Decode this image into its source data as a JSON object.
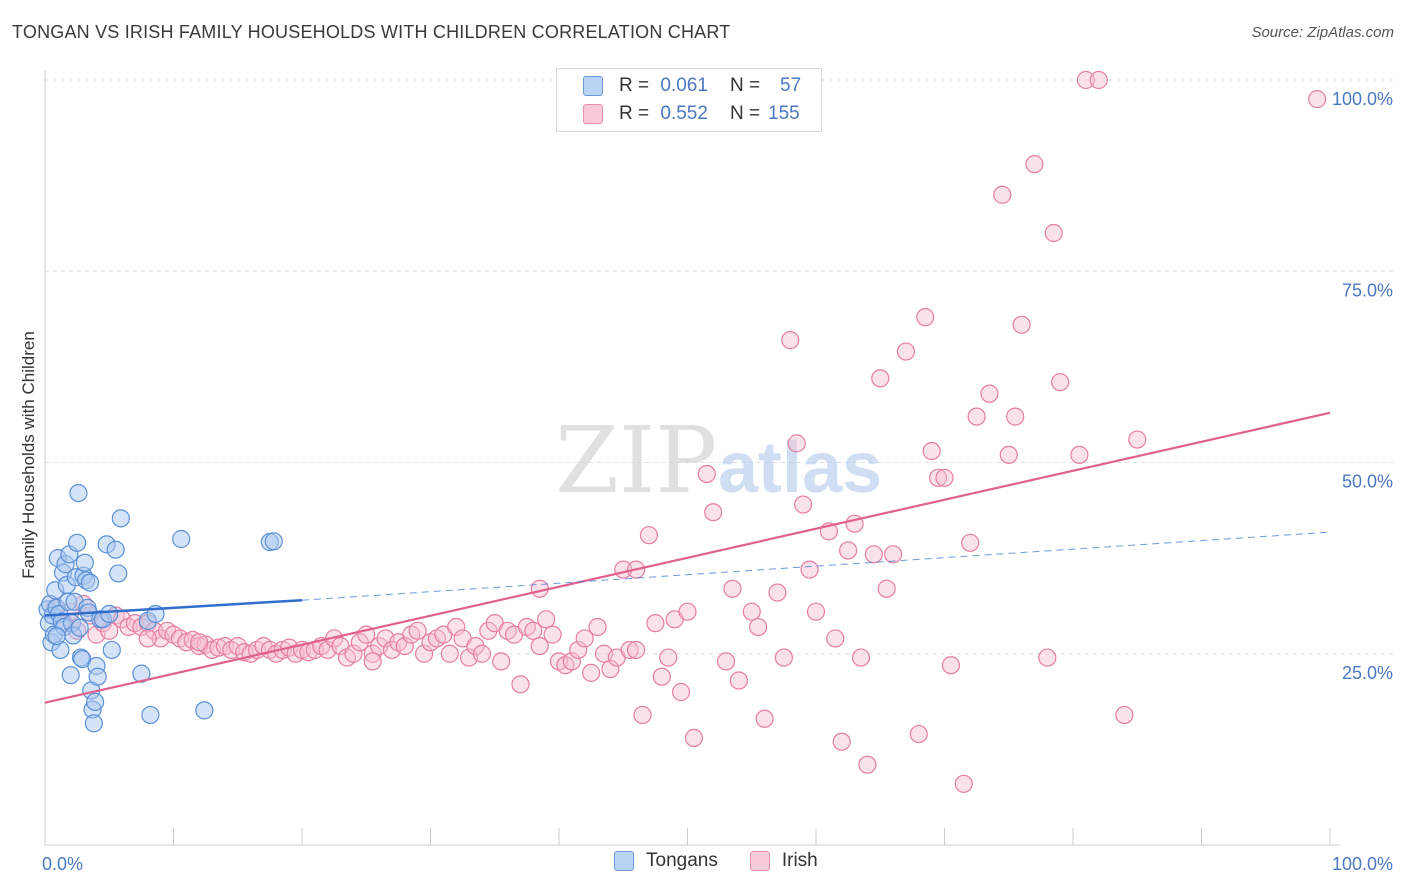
{
  "header": {
    "title": "TONGAN VS IRISH FAMILY HOUSEHOLDS WITH CHILDREN CORRELATION CHART",
    "source": "Source: ZipAtlas.com"
  },
  "legend": {
    "rows": [
      {
        "r_label": "R =",
        "r_value": "0.061",
        "n_label": "N =",
        "n_value": "57"
      },
      {
        "r_label": "R =",
        "r_value": "0.552",
        "n_label": "N =",
        "n_value": "155"
      }
    ],
    "series_names": [
      "Tongans",
      "Irish"
    ]
  },
  "watermark": {
    "zip": "ZIP",
    "atlas": "atlas"
  },
  "colors": {
    "tongans_fill": "#a9c8f0",
    "tongans_stroke": "#5a90d8",
    "tongans_line": "#2f6fcb",
    "irish_fill": "#f6bfd0",
    "irish_stroke": "#e67ea0",
    "irish_line": "#e0608e",
    "tick_color": "#4a78c0"
  },
  "chart_data": {
    "type": "scatter",
    "title": "TONGAN VS IRISH FAMILY HOUSEHOLDS WITH CHILDREN CORRELATION CHART",
    "xlabel": "",
    "ylabel": "Family Households with Children",
    "xlim": [
      0,
      100
    ],
    "ylim": [
      0,
      105
    ],
    "x_tick_labels": [
      "0.0%",
      "100.0%"
    ],
    "y_ticks": [
      25,
      50,
      75,
      100
    ],
    "y_tick_labels": [
      "25.0%",
      "50.0%",
      "75.0%",
      "100.0%"
    ],
    "grid": true,
    "legend_position": "top-center",
    "series": [
      {
        "name": "Tongans",
        "trend": {
          "x": [
            0,
            20
          ],
          "y": [
            30.0,
            32.0
          ],
          "extended_x": [
            20,
            100
          ],
          "extended_y": [
            32.0,
            40.9
          ]
        },
        "points": [
          [
            0.2,
            30.8
          ],
          [
            0.3,
            29.0
          ],
          [
            0.4,
            31.5
          ],
          [
            0.5,
            26.5
          ],
          [
            0.6,
            30.0
          ],
          [
            0.7,
            27.5
          ],
          [
            0.8,
            33.3
          ],
          [
            0.9,
            31.0
          ],
          [
            1.0,
            37.5
          ],
          [
            1.1,
            30.2
          ],
          [
            1.2,
            25.5
          ],
          [
            1.3,
            29.2
          ],
          [
            1.4,
            35.6
          ],
          [
            1.5,
            28.5
          ],
          [
            1.6,
            36.7
          ],
          [
            1.7,
            34.0
          ],
          [
            1.8,
            31.8
          ],
          [
            1.9,
            38.0
          ],
          [
            2.0,
            22.2
          ],
          [
            2.1,
            29.0
          ],
          [
            2.2,
            27.4
          ],
          [
            2.3,
            31.8
          ],
          [
            2.4,
            35.0
          ],
          [
            2.5,
            39.5
          ],
          [
            2.6,
            46.0
          ],
          [
            2.7,
            28.4
          ],
          [
            2.8,
            24.5
          ],
          [
            2.9,
            24.3
          ],
          [
            3.0,
            35.2
          ],
          [
            3.1,
            36.9
          ],
          [
            3.2,
            34.6
          ],
          [
            3.3,
            31.0
          ],
          [
            3.4,
            30.4
          ],
          [
            3.5,
            34.3
          ],
          [
            3.6,
            20.2
          ],
          [
            3.7,
            17.7
          ],
          [
            3.8,
            15.9
          ],
          [
            3.9,
            18.7
          ],
          [
            4.0,
            23.4
          ],
          [
            4.1,
            22.0
          ],
          [
            4.3,
            29.5
          ],
          [
            4.5,
            29.5
          ],
          [
            4.8,
            39.3
          ],
          [
            5.0,
            30.2
          ],
          [
            5.2,
            25.5
          ],
          [
            5.5,
            38.6
          ],
          [
            5.7,
            35.5
          ],
          [
            5.9,
            42.7
          ],
          [
            7.5,
            22.4
          ],
          [
            8.0,
            29.3
          ],
          [
            8.2,
            17.0
          ],
          [
            8.6,
            30.2
          ],
          [
            10.6,
            40.0
          ],
          [
            12.4,
            17.6
          ],
          [
            17.5,
            39.6
          ],
          [
            17.8,
            39.7
          ],
          [
            0.9,
            27.3
          ]
        ]
      },
      {
        "name": "Irish",
        "trend": {
          "x": [
            0,
            100
          ],
          "y": [
            18.6,
            56.5
          ]
        },
        "points": [
          [
            0.8,
            31.0
          ],
          [
            1.5,
            29.0
          ],
          [
            2.0,
            30.5
          ],
          [
            2.5,
            28.0
          ],
          [
            3.0,
            31.5
          ],
          [
            3.5,
            30.0
          ],
          [
            4.0,
            27.5
          ],
          [
            4.5,
            29.0
          ],
          [
            5.0,
            28.0
          ],
          [
            5.5,
            30.0
          ],
          [
            6.0,
            29.5
          ],
          [
            6.5,
            28.5
          ],
          [
            7.0,
            29.0
          ],
          [
            7.5,
            28.5
          ],
          [
            8.0,
            29.0
          ],
          [
            8.5,
            28.0
          ],
          [
            9.0,
            27.0
          ],
          [
            9.5,
            28.0
          ],
          [
            10.0,
            27.5
          ],
          [
            10.5,
            27.0
          ],
          [
            11.0,
            26.5
          ],
          [
            11.5,
            26.8
          ],
          [
            12.0,
            26.0
          ],
          [
            12.5,
            26.2
          ],
          [
            13.0,
            25.5
          ],
          [
            13.5,
            25.8
          ],
          [
            14.0,
            26.0
          ],
          [
            14.5,
            25.5
          ],
          [
            15.0,
            26.0
          ],
          [
            15.5,
            25.2
          ],
          [
            16.0,
            25.0
          ],
          [
            16.5,
            25.5
          ],
          [
            17.0,
            26.0
          ],
          [
            17.5,
            25.5
          ],
          [
            18.0,
            25.0
          ],
          [
            18.5,
            25.5
          ],
          [
            19.0,
            25.8
          ],
          [
            19.5,
            25.0
          ],
          [
            20.0,
            25.5
          ],
          [
            20.5,
            25.2
          ],
          [
            21.0,
            25.5
          ],
          [
            21.5,
            26.0
          ],
          [
            22.0,
            25.5
          ],
          [
            22.5,
            27.0
          ],
          [
            23.0,
            26.0
          ],
          [
            23.5,
            24.5
          ],
          [
            24.0,
            25.0
          ],
          [
            24.5,
            26.5
          ],
          [
            25.0,
            27.5
          ],
          [
            25.5,
            25.0
          ],
          [
            26.0,
            26.0
          ],
          [
            26.5,
            27.0
          ],
          [
            27.0,
            25.5
          ],
          [
            27.5,
            26.5
          ],
          [
            28.0,
            26.0
          ],
          [
            28.5,
            27.5
          ],
          [
            29.0,
            28.0
          ],
          [
            29.5,
            25.0
          ],
          [
            30.0,
            26.5
          ],
          [
            30.5,
            27.0
          ],
          [
            31.0,
            27.5
          ],
          [
            31.5,
            25.0
          ],
          [
            32.0,
            28.5
          ],
          [
            32.5,
            27.0
          ],
          [
            33.0,
            24.5
          ],
          [
            33.5,
            26.0
          ],
          [
            34.0,
            25.0
          ],
          [
            34.5,
            28.0
          ],
          [
            35.0,
            29.0
          ],
          [
            35.5,
            24.0
          ],
          [
            36.0,
            28.0
          ],
          [
            36.5,
            27.5
          ],
          [
            37.0,
            21.0
          ],
          [
            37.5,
            28.5
          ],
          [
            38.0,
            28.0
          ],
          [
            38.5,
            26.0
          ],
          [
            39.0,
            29.5
          ],
          [
            39.5,
            27.5
          ],
          [
            40.0,
            24.0
          ],
          [
            40.5,
            23.5
          ],
          [
            41.0,
            24.0
          ],
          [
            41.5,
            25.5
          ],
          [
            42.0,
            27.0
          ],
          [
            42.5,
            22.5
          ],
          [
            43.0,
            28.5
          ],
          [
            43.5,
            25.0
          ],
          [
            44.0,
            23.0
          ],
          [
            44.5,
            24.5
          ],
          [
            45.0,
            36.0
          ],
          [
            45.5,
            25.5
          ],
          [
            46.0,
            25.5
          ],
          [
            46.5,
            17.0
          ],
          [
            47.0,
            40.5
          ],
          [
            47.5,
            29.0
          ],
          [
            48.0,
            22.0
          ],
          [
            48.5,
            24.5
          ],
          [
            49.0,
            29.5
          ],
          [
            49.5,
            20.0
          ],
          [
            50.0,
            30.5
          ],
          [
            50.5,
            14.0
          ],
          [
            51.5,
            48.5
          ],
          [
            52.0,
            43.5
          ],
          [
            53.0,
            24.0
          ],
          [
            53.5,
            33.5
          ],
          [
            54.0,
            21.5
          ],
          [
            55.0,
            30.5
          ],
          [
            55.5,
            28.5
          ],
          [
            56.0,
            16.5
          ],
          [
            57.0,
            33.0
          ],
          [
            57.5,
            24.5
          ],
          [
            58.0,
            66.0
          ],
          [
            58.5,
            52.5
          ],
          [
            59.0,
            44.5
          ],
          [
            59.5,
            36.0
          ],
          [
            60.0,
            30.5
          ],
          [
            61.0,
            41.0
          ],
          [
            61.5,
            27.0
          ],
          [
            62.0,
            13.5
          ],
          [
            62.5,
            38.5
          ],
          [
            63.0,
            42.0
          ],
          [
            63.5,
            24.5
          ],
          [
            64.0,
            10.5
          ],
          [
            65.0,
            61.0
          ],
          [
            65.5,
            33.5
          ],
          [
            66.0,
            38.0
          ],
          [
            67.0,
            64.5
          ],
          [
            68.0,
            14.5
          ],
          [
            68.5,
            69.0
          ],
          [
            69.0,
            51.5
          ],
          [
            69.5,
            48.0
          ],
          [
            70.0,
            48.0
          ],
          [
            70.5,
            23.5
          ],
          [
            71.5,
            8.0
          ],
          [
            72.0,
            39.5
          ],
          [
            72.5,
            56.0
          ],
          [
            73.5,
            59.0
          ],
          [
            74.5,
            85.0
          ],
          [
            75.0,
            51.0
          ],
          [
            75.5,
            56.0
          ],
          [
            76.0,
            68.0
          ],
          [
            77.0,
            89.0
          ],
          [
            78.0,
            24.5
          ],
          [
            78.5,
            80.0
          ],
          [
            79.0,
            60.5
          ],
          [
            80.5,
            51.0
          ],
          [
            81.0,
            100.0
          ],
          [
            82.0,
            100.0
          ],
          [
            84.0,
            17.0
          ],
          [
            85.0,
            53.0
          ],
          [
            46.0,
            36.0
          ],
          [
            38.5,
            33.5
          ],
          [
            25.5,
            24.0
          ],
          [
            12.0,
            26.5
          ],
          [
            8.0,
            27.0
          ],
          [
            99.0,
            97.5
          ],
          [
            64.5,
            38.0
          ]
        ]
      }
    ]
  }
}
